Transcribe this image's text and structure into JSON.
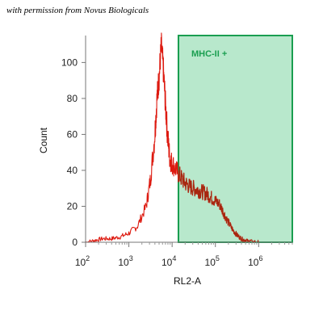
{
  "credit": "with permission from Novus Biologicals",
  "chart_data": {
    "type": "area",
    "xlabel": "RL2-A",
    "ylabel": "Count",
    "xscale": "log",
    "xlim": [
      100,
      6000000
    ],
    "ylim": [
      0,
      115
    ],
    "grid": false,
    "yticks": [
      0,
      20,
      40,
      60,
      80,
      100
    ],
    "xticks": [
      {
        "value": 100,
        "base": "10",
        "exp": "2"
      },
      {
        "value": 1000,
        "base": "10",
        "exp": "3"
      },
      {
        "value": 10000,
        "base": "10",
        "exp": "4"
      },
      {
        "value": 100000,
        "base": "10",
        "exp": "5"
      },
      {
        "value": 1000000,
        "base": "10",
        "exp": "6"
      }
    ],
    "series": [
      {
        "color": "#dd1a10",
        "x": [
          100,
          158,
          251,
          398,
          631,
          1000,
          1585,
          2512,
          3162,
          3981,
          4467,
          5012,
          5623,
          6310,
          7079,
          7943,
          8913,
          10000,
          12589,
          15849,
          19953,
          25119,
          31623,
          39811,
          50119,
          63096,
          79433,
          100000,
          125893,
          158489,
          199526,
          251189,
          316228,
          398107,
          501187,
          630957,
          1000000,
          2000000,
          6000000
        ],
        "values": [
          0,
          1,
          2,
          2,
          3,
          5,
          9,
          20,
          35,
          60,
          80,
          92,
          110,
          95,
          75,
          58,
          46,
          44,
          40,
          36,
          33,
          31,
          30,
          29,
          28,
          27,
          25,
          23,
          21,
          16,
          11,
          7,
          4,
          2,
          1,
          0.5,
          0,
          0,
          0
        ]
      }
    ],
    "gate": {
      "label": "MHC-II +",
      "x_start": 14000,
      "x_end": 6000000,
      "fill": "#b8e8cc",
      "stroke": "#1a9e50"
    },
    "colors": {
      "line": "#dd1a10",
      "line_dark": "#9e2a10",
      "gate_text": "#1a9e50"
    }
  }
}
